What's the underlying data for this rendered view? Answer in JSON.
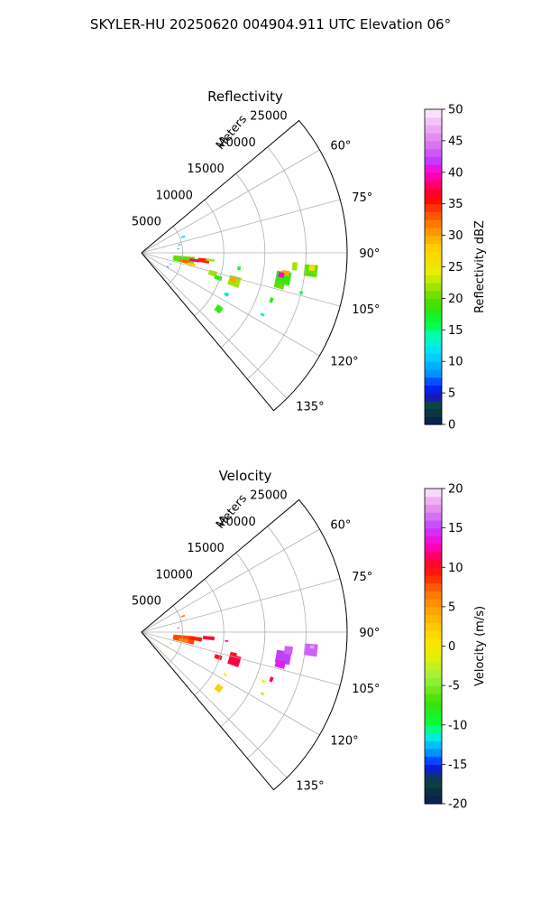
{
  "suptitle": "SKYLER-HU  20250620  004904.911 UTC Elevation 06°",
  "chart_data": [
    {
      "type": "heatmap",
      "projection": "polar-sector",
      "title": "Reflectivity",
      "radial_label": "Meters",
      "radial_ticks": [
        5000,
        10000,
        15000,
        20000,
        25000
      ],
      "radial_max": 25000,
      "azimuth_range_deg": [
        50,
        140
      ],
      "azimuth_ticks_deg": [
        60,
        75,
        90,
        105,
        120,
        135
      ],
      "azimuth_tick_labels": [
        "60°",
        "75°",
        "90°",
        "105°",
        "120°",
        "135°"
      ],
      "grid": true,
      "colorbar": {
        "label": "Reflectivity dBZ",
        "min": 0,
        "max": 50,
        "ticks": [
          0,
          5,
          10,
          15,
          20,
          25,
          30,
          35,
          40,
          45,
          50
        ],
        "stops": [
          {
            "v": 0,
            "c": "#0a1a5a"
          },
          {
            "v": 1.5,
            "c": "#0b2f3f"
          },
          {
            "v": 3,
            "c": "#0a4a3a"
          },
          {
            "v": 4,
            "c": "#1a1aa0"
          },
          {
            "v": 6,
            "c": "#0020ff"
          },
          {
            "v": 8,
            "c": "#0090ff"
          },
          {
            "v": 11,
            "c": "#00d8ff"
          },
          {
            "v": 14,
            "c": "#00ffc0"
          },
          {
            "v": 16,
            "c": "#00ff40"
          },
          {
            "v": 19,
            "c": "#40e000"
          },
          {
            "v": 21,
            "c": "#7ee000"
          },
          {
            "v": 24,
            "c": "#e8f000"
          },
          {
            "v": 28,
            "c": "#ffd000"
          },
          {
            "v": 31,
            "c": "#ff9000"
          },
          {
            "v": 34,
            "c": "#ff4000"
          },
          {
            "v": 36,
            "c": "#ff0000"
          },
          {
            "v": 38,
            "c": "#ff0060"
          },
          {
            "v": 40,
            "c": "#ff00d0"
          },
          {
            "v": 42,
            "c": "#c040ff"
          },
          {
            "v": 45,
            "c": "#e080f0"
          },
          {
            "v": 48,
            "c": "#f4c0f4"
          },
          {
            "v": 50,
            "c": "#fff0ff"
          }
        ]
      },
      "cells": [
        {
          "az": 99,
          "r": 5200,
          "daz": 9,
          "dr": 2600,
          "v": 20
        },
        {
          "az": 101,
          "r": 5400,
          "daz": 4,
          "dr": 1200,
          "v": 33
        },
        {
          "az": 98,
          "r": 6500,
          "daz": 3,
          "dr": 1200,
          "v": 38
        },
        {
          "az": 97,
          "r": 7600,
          "daz": 4,
          "dr": 1400,
          "v": 35
        },
        {
          "az": 103,
          "r": 6200,
          "daz": 3,
          "dr": 1000,
          "v": 28
        },
        {
          "az": 96,
          "r": 8400,
          "daz": 2,
          "dr": 1000,
          "v": 22
        },
        {
          "az": 99,
          "r": 12000,
          "daz": 2,
          "dr": 400,
          "v": 16
        },
        {
          "az": 106,
          "r": 9000,
          "daz": 4,
          "dr": 1000,
          "v": 22
        },
        {
          "az": 108,
          "r": 9800,
          "daz": 3,
          "dr": 900,
          "v": 18
        },
        {
          "az": 107,
          "r": 11800,
          "daz": 6,
          "dr": 1400,
          "v": 22
        },
        {
          "az": 106,
          "r": 11600,
          "daz": 3,
          "dr": 700,
          "v": 30
        },
        {
          "az": 116,
          "r": 11500,
          "daz": 2,
          "dr": 500,
          "v": 12
        },
        {
          "az": 126,
          "r": 11600,
          "daz": 4,
          "dr": 800,
          "v": 18
        },
        {
          "az": 117,
          "r": 16500,
          "daz": 1,
          "dr": 500,
          "v": 13
        },
        {
          "az": 110,
          "r": 16800,
          "daz": 2,
          "dr": 400,
          "v": 18
        },
        {
          "az": 100,
          "r": 17500,
          "daz": 5,
          "dr": 1800,
          "v": 18
        },
        {
          "az": 98,
          "r": 17700,
          "daz": 2,
          "dr": 900,
          "v": 30
        },
        {
          "az": 99,
          "r": 17200,
          "daz": 2,
          "dr": 700,
          "v": 40
        },
        {
          "az": 103,
          "r": 17200,
          "daz": 3,
          "dr": 1200,
          "v": 20
        },
        {
          "az": 95,
          "r": 18700,
          "daz": 3,
          "dr": 600,
          "v": 22
        },
        {
          "az": 96,
          "r": 20700,
          "daz": 4,
          "dr": 1600,
          "v": 20
        },
        {
          "az": 95,
          "r": 20800,
          "daz": 2,
          "dr": 700,
          "v": 26
        },
        {
          "az": 104,
          "r": 20000,
          "daz": 1,
          "dr": 400,
          "v": 16
        },
        {
          "az": 69,
          "r": 5400,
          "daz": 2,
          "dr": 500,
          "v": 11
        },
        {
          "az": 78,
          "r": 4700,
          "daz": 1,
          "dr": 300,
          "v": 3
        },
        {
          "az": 84,
          "r": 4500,
          "daz": 1,
          "dr": 300,
          "v": 8
        },
        {
          "az": 111,
          "r": 3800,
          "daz": 1,
          "dr": 300,
          "v": 8
        },
        {
          "az": 118,
          "r": 3600,
          "daz": 1,
          "dr": 300,
          "v": 6
        }
      ]
    },
    {
      "type": "heatmap",
      "projection": "polar-sector",
      "title": "Velocity",
      "radial_label": "Meters",
      "radial_ticks": [
        5000,
        10000,
        15000,
        20000,
        25000
      ],
      "radial_max": 25000,
      "azimuth_range_deg": [
        50,
        140
      ],
      "azimuth_ticks_deg": [
        60,
        75,
        90,
        105,
        120,
        135
      ],
      "azimuth_tick_labels": [
        "60°",
        "75°",
        "90°",
        "105°",
        "120°",
        "135°"
      ],
      "grid": true,
      "colorbar": {
        "label": "Velocity (m/s)",
        "min": -20,
        "max": 20,
        "ticks": [
          -20,
          -15,
          -10,
          -5,
          0,
          5,
          10,
          15,
          20
        ],
        "stops": [
          {
            "v": -20,
            "c": "#0a1a5a"
          },
          {
            "v": -18.5,
            "c": "#0b2f3f"
          },
          {
            "v": -17,
            "c": "#0a4a3a"
          },
          {
            "v": -16,
            "c": "#1a1aa0"
          },
          {
            "v": -15,
            "c": "#0020ff"
          },
          {
            "v": -13.5,
            "c": "#0090ff"
          },
          {
            "v": -12,
            "c": "#00d8ff"
          },
          {
            "v": -11,
            "c": "#00ffc0"
          },
          {
            "v": -10,
            "c": "#00ff40"
          },
          {
            "v": -7,
            "c": "#40e000"
          },
          {
            "v": -4,
            "c": "#a0f040"
          },
          {
            "v": -1,
            "c": "#e8f000"
          },
          {
            "v": 1,
            "c": "#ffe000"
          },
          {
            "v": 4,
            "c": "#ffb000"
          },
          {
            "v": 7,
            "c": "#ff7000"
          },
          {
            "v": 9,
            "c": "#ff2000"
          },
          {
            "v": 11,
            "c": "#ff0040"
          },
          {
            "v": 13,
            "c": "#ff00d0"
          },
          {
            "v": 15,
            "c": "#c040ff"
          },
          {
            "v": 17,
            "c": "#e080f0"
          },
          {
            "v": 19,
            "c": "#f4c0f4"
          },
          {
            "v": 20,
            "c": "#fff0ff"
          }
        ]
      },
      "cells": [
        {
          "az": 99,
          "r": 5200,
          "daz": 9,
          "dr": 2600,
          "v": 8
        },
        {
          "az": 101,
          "r": 5200,
          "daz": 4,
          "dr": 1200,
          "v": 6
        },
        {
          "az": 97,
          "r": 6600,
          "daz": 4,
          "dr": 1600,
          "v": 9
        },
        {
          "az": 95,
          "r": 8200,
          "daz": 3,
          "dr": 1400,
          "v": 11
        },
        {
          "az": 96,
          "r": 10400,
          "daz": 1,
          "dr": 400,
          "v": 12
        },
        {
          "az": 108,
          "r": 9800,
          "daz": 3,
          "dr": 900,
          "v": 10
        },
        {
          "az": 107,
          "r": 11800,
          "daz": 6,
          "dr": 1400,
          "v": 11
        },
        {
          "az": 104,
          "r": 11500,
          "daz": 3,
          "dr": 800,
          "v": 10
        },
        {
          "az": 126,
          "r": 11600,
          "daz": 4,
          "dr": 800,
          "v": 2
        },
        {
          "az": 117,
          "r": 11400,
          "daz": 1,
          "dr": 400,
          "v": 2
        },
        {
          "az": 110,
          "r": 16800,
          "daz": 2,
          "dr": 400,
          "v": 11
        },
        {
          "az": 100,
          "r": 17500,
          "daz": 5,
          "dr": 1800,
          "v": 15
        },
        {
          "az": 97,
          "r": 18000,
          "daz": 3,
          "dr": 1000,
          "v": 16
        },
        {
          "az": 103,
          "r": 17300,
          "daz": 3,
          "dr": 1200,
          "v": 14
        },
        {
          "az": 96,
          "r": 20700,
          "daz": 4,
          "dr": 1600,
          "v": 16
        },
        {
          "az": 95,
          "r": 20800,
          "daz": 1,
          "dr": 500,
          "v": 18
        },
        {
          "az": 112,
          "r": 16000,
          "daz": 1,
          "dr": 400,
          "v": -1
        },
        {
          "az": 117,
          "r": 16500,
          "daz": 1,
          "dr": 400,
          "v": -3
        },
        {
          "az": 69,
          "r": 5400,
          "daz": 2,
          "dr": 500,
          "v": 6
        },
        {
          "az": 84,
          "r": 4500,
          "daz": 1,
          "dr": 300,
          "v": 12
        },
        {
          "az": 111,
          "r": 3800,
          "daz": 1,
          "dr": 300,
          "v": 4
        },
        {
          "az": 118,
          "r": 3600,
          "daz": 1,
          "dr": 300,
          "v": 1
        }
      ]
    }
  ]
}
